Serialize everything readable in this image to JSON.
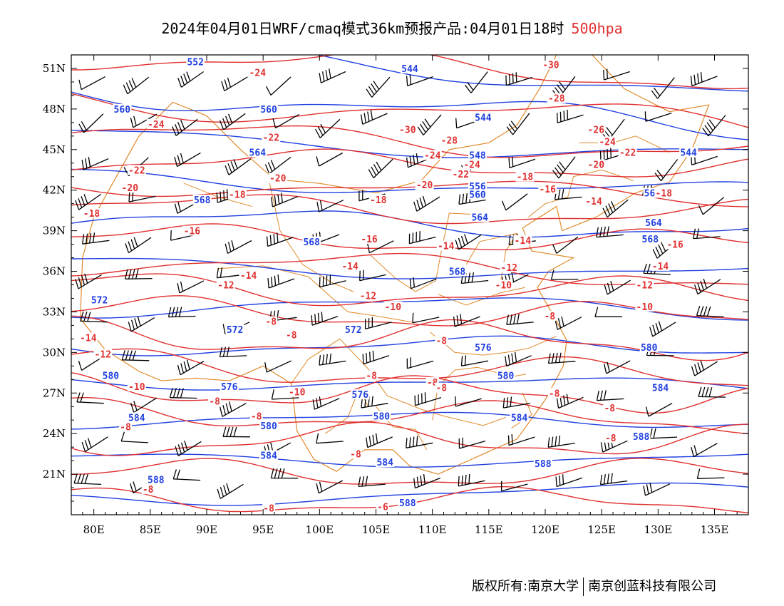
{
  "title": {
    "main": "2024年04月01日WRF/cmaq模式36km预报产品:04月01日18时",
    "level": "500hpa",
    "level_color": "#e03030"
  },
  "footer": {
    "left": "版权所有:南京大学",
    "right": "南京创蓝科技有限公司"
  },
  "axes": {
    "x_ticks": [
      "80E",
      "85E",
      "90E",
      "95E",
      "100E",
      "105E",
      "110E",
      "115E",
      "120E",
      "125E",
      "130E",
      "135E"
    ],
    "x_tick_lon": [
      80,
      85,
      90,
      95,
      100,
      105,
      110,
      115,
      120,
      125,
      130,
      135
    ],
    "y_ticks": [
      "51N",
      "48N",
      "45N",
      "42N",
      "39N",
      "36N",
      "33N",
      "30N",
      "27N",
      "24N",
      "21N"
    ],
    "y_tick_lat": [
      51,
      48,
      45,
      42,
      39,
      36,
      33,
      30,
      27,
      24,
      21
    ],
    "lon_range": [
      78,
      138
    ],
    "lat_range": [
      18,
      52
    ]
  },
  "colors": {
    "height_contour": "#2040e0",
    "temperature_contour": "#e03030",
    "boundary": "#e08a2a",
    "wind_barb": "#000000"
  },
  "geopotential_height_labels": [
    {
      "text": "552",
      "lon": 89.0,
      "lat": 51.5
    },
    {
      "text": "544",
      "lon": 108.0,
      "lat": 51.0
    },
    {
      "text": "560",
      "lon": 82.5,
      "lat": 48.0
    },
    {
      "text": "560",
      "lon": 95.5,
      "lat": 48.0
    },
    {
      "text": "544",
      "lon": 114.5,
      "lat": 47.4
    },
    {
      "text": "564",
      "lon": 94.5,
      "lat": 44.8
    },
    {
      "text": "548",
      "lon": 114.0,
      "lat": 44.6
    },
    {
      "text": "544",
      "lon": 132.7,
      "lat": 44.8
    },
    {
      "text": "556",
      "lon": 114.0,
      "lat": 42.3
    },
    {
      "text": "560",
      "lon": 114.0,
      "lat": 41.7
    },
    {
      "text": "560",
      "lon": 129.5,
      "lat": 41.8
    },
    {
      "text": "568",
      "lon": 89.6,
      "lat": 41.3
    },
    {
      "text": "564",
      "lon": 114.2,
      "lat": 40.0
    },
    {
      "text": "564",
      "lon": 129.6,
      "lat": 39.6
    },
    {
      "text": "568",
      "lon": 99.3,
      "lat": 38.2
    },
    {
      "text": "568",
      "lon": 129.3,
      "lat": 38.4
    },
    {
      "text": "568",
      "lon": 112.2,
      "lat": 36.0
    },
    {
      "text": "572",
      "lon": 80.5,
      "lat": 33.9
    },
    {
      "text": "572",
      "lon": 92.5,
      "lat": 31.7
    },
    {
      "text": "572",
      "lon": 103.0,
      "lat": 31.7
    },
    {
      "text": "576",
      "lon": 114.5,
      "lat": 30.4
    },
    {
      "text": "580",
      "lon": 129.2,
      "lat": 30.4
    },
    {
      "text": "580",
      "lon": 81.5,
      "lat": 28.3
    },
    {
      "text": "580",
      "lon": 116.5,
      "lat": 28.3
    },
    {
      "text": "576",
      "lon": 92.0,
      "lat": 27.5
    },
    {
      "text": "576",
      "lon": 103.6,
      "lat": 26.9
    },
    {
      "text": "584",
      "lon": 130.2,
      "lat": 27.4
    },
    {
      "text": "584",
      "lon": 83.8,
      "lat": 25.2
    },
    {
      "text": "580",
      "lon": 95.5,
      "lat": 24.6
    },
    {
      "text": "580",
      "lon": 105.5,
      "lat": 25.3
    },
    {
      "text": "584",
      "lon": 117.7,
      "lat": 25.2
    },
    {
      "text": "588",
      "lon": 128.5,
      "lat": 23.8
    },
    {
      "text": "584",
      "lon": 95.5,
      "lat": 22.4
    },
    {
      "text": "584",
      "lon": 105.8,
      "lat": 21.9
    },
    {
      "text": "588",
      "lon": 119.8,
      "lat": 21.8
    },
    {
      "text": "588",
      "lon": 85.5,
      "lat": 20.6
    },
    {
      "text": "588",
      "lon": 107.8,
      "lat": 18.9
    }
  ],
  "temperature_labels": [
    {
      "text": "-24",
      "lon": 94.5,
      "lat": 50.7
    },
    {
      "text": "-30",
      "lon": 120.5,
      "lat": 51.3
    },
    {
      "text": "-28",
      "lon": 121.0,
      "lat": 48.8
    },
    {
      "text": "-24",
      "lon": 85.5,
      "lat": 46.9
    },
    {
      "text": "-30",
      "lon": 107.8,
      "lat": 46.5
    },
    {
      "text": "-26",
      "lon": 124.5,
      "lat": 46.5
    },
    {
      "text": "-22",
      "lon": 95.7,
      "lat": 45.9
    },
    {
      "text": "-28",
      "lon": 111.5,
      "lat": 45.7
    },
    {
      "text": "-24",
      "lon": 125.5,
      "lat": 45.6
    },
    {
      "text": "-24",
      "lon": 110.0,
      "lat": 44.6
    },
    {
      "text": "-22",
      "lon": 127.3,
      "lat": 44.8
    },
    {
      "text": "-24",
      "lon": 113.5,
      "lat": 43.9
    },
    {
      "text": "-22",
      "lon": 83.8,
      "lat": 43.5
    },
    {
      "text": "-22",
      "lon": 112.5,
      "lat": 43.2
    },
    {
      "text": "-18",
      "lon": 118.2,
      "lat": 43.0
    },
    {
      "text": "-20",
      "lon": 124.5,
      "lat": 43.9
    },
    {
      "text": "-20",
      "lon": 96.3,
      "lat": 42.9
    },
    {
      "text": "-20",
      "lon": 83.2,
      "lat": 42.2
    },
    {
      "text": "-20",
      "lon": 109.3,
      "lat": 42.4
    },
    {
      "text": "-16",
      "lon": 120.2,
      "lat": 42.1
    },
    {
      "text": "-18",
      "lon": 130.5,
      "lat": 41.8
    },
    {
      "text": "-18",
      "lon": 92.7,
      "lat": 41.7
    },
    {
      "text": "-18",
      "lon": 105.2,
      "lat": 41.3
    },
    {
      "text": "-14",
      "lon": 124.3,
      "lat": 41.2
    },
    {
      "text": "-18",
      "lon": 79.8,
      "lat": 40.3
    },
    {
      "text": "-16",
      "lon": 88.7,
      "lat": 39.0
    },
    {
      "text": "-16",
      "lon": 104.4,
      "lat": 38.4
    },
    {
      "text": "-14",
      "lon": 111.2,
      "lat": 37.9
    },
    {
      "text": "-14",
      "lon": 118.0,
      "lat": 38.3
    },
    {
      "text": "-16",
      "lon": 131.5,
      "lat": 38.0
    },
    {
      "text": "-14",
      "lon": 93.7,
      "lat": 35.7
    },
    {
      "text": "-14",
      "lon": 102.7,
      "lat": 36.4
    },
    {
      "text": "-12",
      "lon": 116.8,
      "lat": 36.3
    },
    {
      "text": "-14",
      "lon": 130.2,
      "lat": 36.4
    },
    {
      "text": "-12",
      "lon": 91.7,
      "lat": 35.0
    },
    {
      "text": "-10",
      "lon": 116.3,
      "lat": 35.0
    },
    {
      "text": "-12",
      "lon": 128.8,
      "lat": 35.0
    },
    {
      "text": "-12",
      "lon": 104.3,
      "lat": 34.2
    },
    {
      "text": "-10",
      "lon": 106.5,
      "lat": 33.4
    },
    {
      "text": "-10",
      "lon": 128.8,
      "lat": 33.4
    },
    {
      "text": "-8",
      "lon": 120.4,
      "lat": 32.7
    },
    {
      "text": "-8",
      "lon": 95.7,
      "lat": 32.3
    },
    {
      "text": "-8",
      "lon": 97.5,
      "lat": 31.3
    },
    {
      "text": "-8",
      "lon": 110.8,
      "lat": 30.9
    },
    {
      "text": "-14",
      "lon": 79.5,
      "lat": 31.1
    },
    {
      "text": "-12",
      "lon": 80.8,
      "lat": 29.9
    },
    {
      "text": "-8",
      "lon": 104.6,
      "lat": 28.3
    },
    {
      "text": "-10",
      "lon": 83.8,
      "lat": 27.5
    },
    {
      "text": "-8",
      "lon": 110.0,
      "lat": 27.8
    },
    {
      "text": "-10",
      "lon": 98.0,
      "lat": 27.1
    },
    {
      "text": "-8",
      "lon": 110.8,
      "lat": 27.4
    },
    {
      "text": "-8",
      "lon": 120.8,
      "lat": 27.0
    },
    {
      "text": "-8",
      "lon": 90.7,
      "lat": 26.4
    },
    {
      "text": "-8",
      "lon": 125.7,
      "lat": 25.9
    },
    {
      "text": "-8",
      "lon": 94.4,
      "lat": 25.3
    },
    {
      "text": "-8",
      "lon": 82.8,
      "lat": 24.5
    },
    {
      "text": "-8",
      "lon": 125.8,
      "lat": 23.7
    },
    {
      "text": "-8",
      "lon": 103.2,
      "lat": 22.5
    },
    {
      "text": "-8",
      "lon": 84.8,
      "lat": 19.9
    },
    {
      "text": "-6",
      "lon": 105.6,
      "lat": 18.6
    },
    {
      "text": "-8",
      "lon": 95.5,
      "lat": 18.5
    }
  ]
}
